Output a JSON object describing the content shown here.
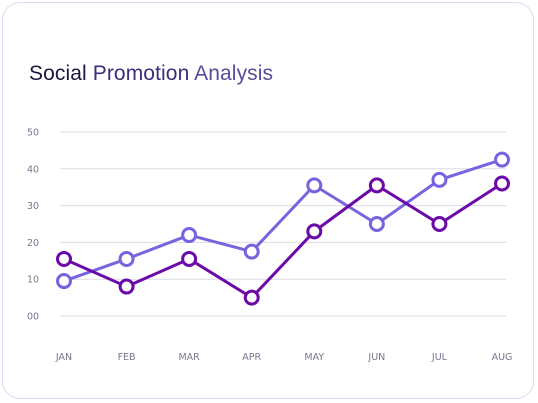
{
  "chart_data": {
    "type": "line",
    "title_parts": [
      "Social",
      "Promotion",
      "Analysis"
    ],
    "categories": [
      "JAN",
      "FEB",
      "MAR",
      "APR",
      "MAY",
      "JUN",
      "JUL",
      "AUG"
    ],
    "y_tick_labels": [
      "00",
      "10",
      "20",
      "30",
      "40",
      "50"
    ],
    "ylim": [
      0,
      50
    ],
    "grid": true,
    "legend": "none",
    "series": [
      {
        "values": [
          9.5,
          15.5,
          22,
          17.5,
          35.5,
          25,
          37,
          42.5
        ],
        "color": "#7a63de"
      },
      {
        "values": [
          15.5,
          8,
          15.5,
          5,
          23,
          35.5,
          25,
          36
        ],
        "color": "#6c0aa8"
      }
    ]
  }
}
